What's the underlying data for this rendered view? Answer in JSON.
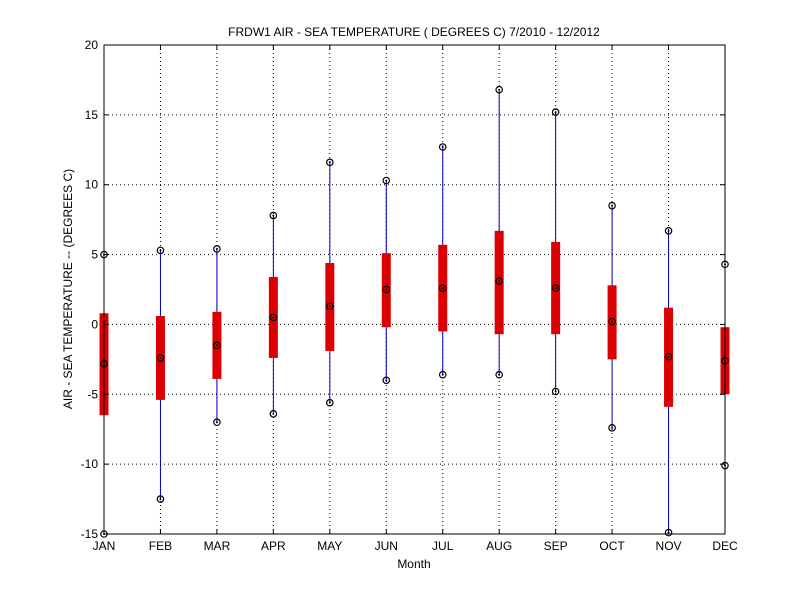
{
  "chart_data": {
    "type": "box",
    "title": "FRDW1  AIR - SEA TEMPERATURE ( DEGREES C) 7/2010 - 12/2012",
    "xlabel": "Month",
    "ylabel": "AIR - SEA TEMPERATURE -- (DEGREES C)",
    "categories": [
      "JAN",
      "FEB",
      "MAR",
      "APR",
      "MAY",
      "JUN",
      "JUL",
      "AUG",
      "SEP",
      "OCT",
      "NOV",
      "DEC"
    ],
    "ylim": [
      -15,
      20
    ],
    "yticks": [
      -15,
      -10,
      -5,
      0,
      5,
      10,
      15,
      20
    ],
    "grid": true,
    "series": [
      {
        "min": [
          -15.0,
          -12.5,
          -7.0,
          -6.4,
          -5.6,
          -4.0,
          -3.6,
          -3.6,
          -4.8,
          -7.4,
          -14.9,
          -10.1
        ],
        "q1": [
          -6.5,
          -5.4,
          -3.9,
          -2.4,
          -1.9,
          -0.2,
          -0.5,
          -0.7,
          -0.7,
          -2.5,
          -5.9,
          -5.0
        ],
        "median": [
          -2.8,
          -2.4,
          -1.5,
          0.5,
          1.3,
          2.5,
          2.6,
          3.1,
          2.6,
          0.2,
          -2.3,
          -2.6
        ],
        "q3": [
          0.8,
          0.6,
          0.9,
          3.4,
          4.4,
          5.1,
          5.7,
          6.7,
          5.9,
          2.8,
          1.2,
          -0.2
        ],
        "max": [
          5.0,
          5.3,
          5.4,
          7.8,
          11.6,
          10.3,
          12.7,
          16.8,
          15.2,
          8.5,
          6.7,
          4.3
        ]
      }
    ],
    "colors": {
      "whisker": "#0000cc",
      "box": "#dd0000",
      "marker": "#000000",
      "grid": "#000000"
    }
  }
}
